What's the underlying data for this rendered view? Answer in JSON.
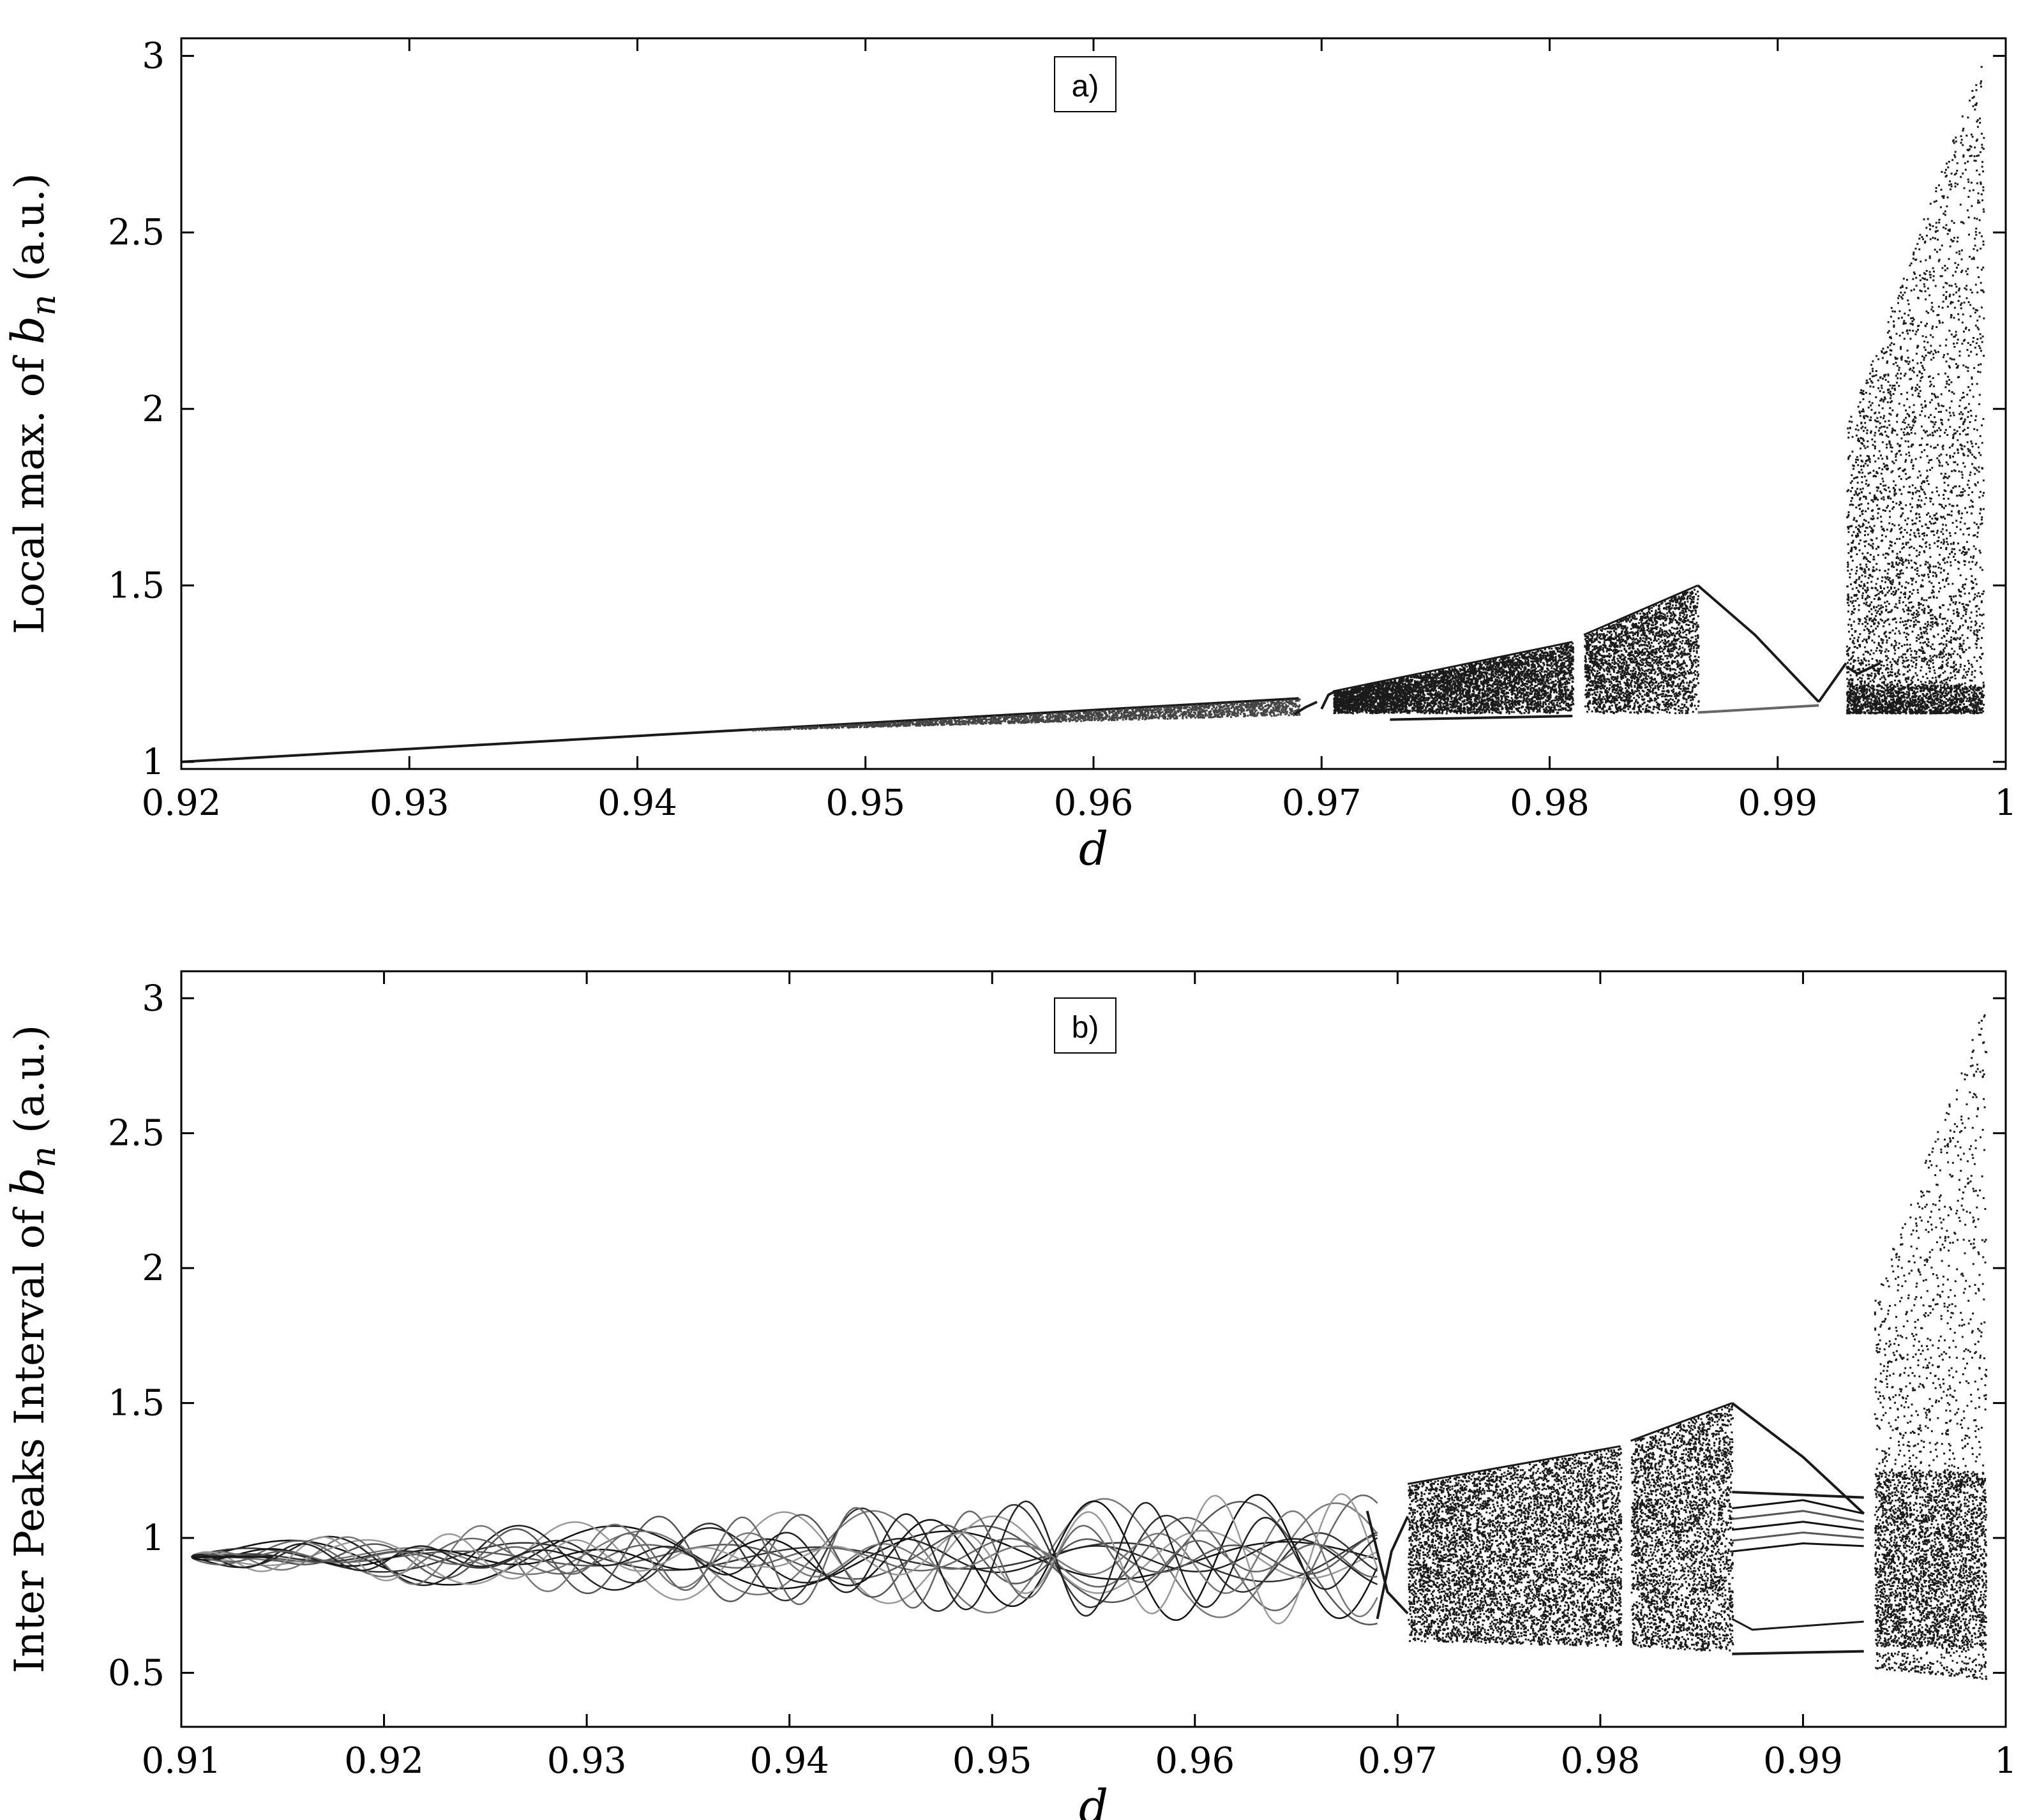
{
  "chart_data": [
    {
      "panel": "a)",
      "type": "scatter",
      "xlabel": "d",
      "ylabel": {
        "prefix": "Local max. of ",
        "var": "b",
        "sub": "n",
        "suffix": " (a.u.)"
      },
      "xlim": [
        0.92,
        1.0
      ],
      "ylim": [
        0.98,
        3.05
      ],
      "x_ticks": [
        0.92,
        0.93,
        0.94,
        0.95,
        0.96,
        0.97,
        0.98,
        0.99,
        1
      ],
      "x_tick_labels": [
        "0.92",
        "0.93",
        "0.94",
        "0.95",
        "0.96",
        "0.97",
        "0.98",
        "0.99",
        "1"
      ],
      "y_ticks": [
        1,
        1.5,
        2,
        2.5,
        3
      ],
      "y_tick_labels": [
        "1",
        "1.5",
        "2",
        "2.5",
        "3"
      ],
      "grid": false,
      "colors": {
        "points": "#1a1a1a",
        "axis": "#000000"
      },
      "structure": {
        "period_one_line": {
          "x": [
            0.92,
            0.969
          ],
          "y": [
            1.0,
            1.18
          ]
        },
        "window_curve_1": {
          "x": [
            0.9687,
            0.9695,
            0.9703
          ],
          "y": [
            1.13,
            1.17,
            1.2
          ]
        },
        "chaotic_bands": [
          {
            "x_range": [
              0.9705,
              0.981
            ],
            "y_top": [
              1.2,
              1.34
            ],
            "y_bottom": [
              1.14,
              1.14
            ]
          },
          {
            "x_range": [
              0.9815,
              0.9865
            ],
            "y_top": [
              1.36,
              1.5
            ],
            "y_bottom": [
              1.14,
              1.14
            ]
          }
        ],
        "low_branch": {
          "x": [
            0.973,
            0.981
          ],
          "y": [
            1.12,
            1.13
          ]
        },
        "descending_curve": {
          "x": [
            0.9865,
            0.989,
            0.9918
          ],
          "y": [
            1.5,
            1.36,
            1.17
          ]
        },
        "flat_branch": {
          "x": [
            0.9865,
            0.9918
          ],
          "y": [
            1.14,
            1.16
          ]
        },
        "rising_curve": {
          "x": [
            0.9918,
            0.993
          ],
          "y": [
            1.17,
            1.28
          ]
        },
        "chaos_region": {
          "x_range": [
            0.993,
            0.999
          ],
          "y_top": [
            1.95,
            3.0
          ],
          "y_bottom": [
            1.14,
            1.14
          ]
        }
      }
    },
    {
      "panel": "b)",
      "type": "scatter",
      "xlabel": "d",
      "ylabel": {
        "prefix": "Inter Peaks Interval of ",
        "var": "b",
        "sub": "n",
        "suffix": " (a.u.)"
      },
      "xlim": [
        0.91,
        1.0
      ],
      "ylim": [
        0.3,
        3.1
      ],
      "x_ticks": [
        0.91,
        0.92,
        0.93,
        0.94,
        0.95,
        0.96,
        0.97,
        0.98,
        0.99,
        1
      ],
      "x_tick_labels": [
        "0.91",
        "0.92",
        "0.93",
        "0.94",
        "0.95",
        "0.96",
        "0.97",
        "0.98",
        "0.99",
        "1"
      ],
      "y_ticks": [
        0.5,
        1,
        1.5,
        2,
        2.5,
        3
      ],
      "y_tick_labels": [
        "0.5",
        "1",
        "1.5",
        "2",
        "2.5",
        "3"
      ],
      "grid": false,
      "colors": {
        "points": "#1a1a1a",
        "axis": "#000000"
      },
      "structure": {
        "wedge": {
          "x_range": [
            0.9105,
            0.969
          ],
          "apex_y": 0.93,
          "y_top_end": 1.18,
          "y_bottom_end": 0.67
        },
        "band_1": {
          "x_range": [
            0.9705,
            0.981
          ],
          "y_top": [
            1.2,
            1.34
          ],
          "y_bottom": [
            0.62,
            0.6
          ]
        },
        "band_2": {
          "x_range": [
            0.9815,
            0.9865
          ],
          "y_top": [
            1.36,
            1.5
          ],
          "y_bottom": [
            0.6,
            0.58
          ]
        },
        "descending_curve": {
          "x": [
            0.9865,
            0.99,
            0.993
          ],
          "y": [
            1.5,
            1.3,
            1.09
          ]
        },
        "top_branch": {
          "x": [
            0.9865,
            0.993
          ],
          "y": [
            1.17,
            1.15
          ]
        },
        "bottom_branch": {
          "x": [
            0.9865,
            0.993
          ],
          "y": [
            0.57,
            0.58
          ]
        },
        "chaos_region": {
          "x_range": [
            0.9935,
            0.999
          ],
          "y_top": [
            1.9,
            3.0
          ],
          "y_bottom": [
            0.52,
            0.48
          ]
        }
      }
    }
  ]
}
